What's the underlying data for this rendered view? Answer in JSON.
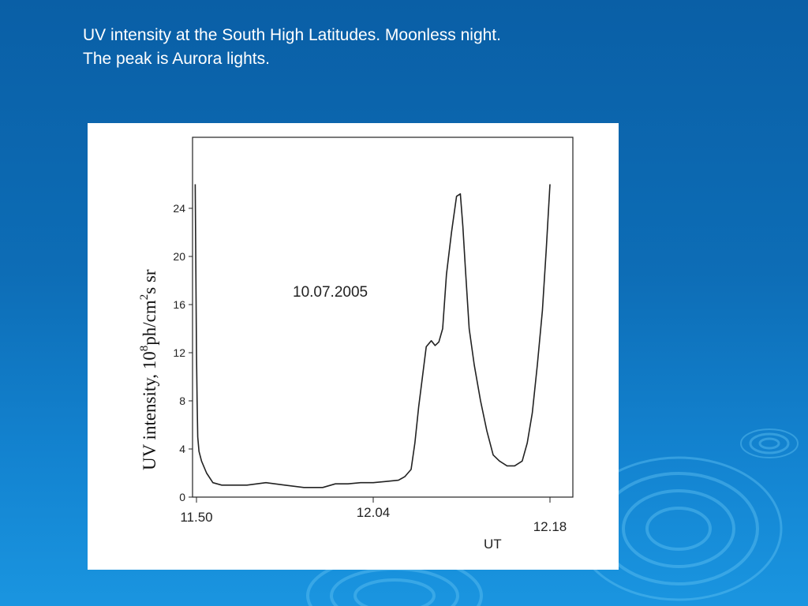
{
  "slide": {
    "title_line1": "UV intensity at the South High Latitudes. Moonless night.",
    "title_line2": "The peak is Aurora lights."
  },
  "colors": {
    "background_top": "#0a5fa6",
    "background_bottom": "#1a95e0",
    "chart_line": "#222222"
  },
  "chart_data": {
    "type": "line",
    "title": "",
    "annotation": "10.07.2005",
    "xlabel": "UT",
    "ylabel": {
      "prefix": "UV intensity, 10",
      "exp": "8",
      "unit": "ph/cm",
      "unit_sup": "2",
      "suffix": "s sr"
    },
    "xlim": [
      0,
      28
    ],
    "ylim": [
      0,
      28
    ],
    "x_ticks": [
      {
        "x": 0,
        "label": "11.50"
      },
      {
        "x": 14,
        "label": "12.04"
      },
      {
        "x": 28,
        "label": "12.18"
      }
    ],
    "y_ticks": [
      0,
      4,
      8,
      12,
      16,
      20,
      24
    ],
    "grid": false,
    "series": [
      {
        "x": [
          -0.1,
          0.0,
          0.05,
          0.1,
          0.2,
          0.4,
          0.8,
          1.3,
          2.0,
          3.0,
          4.0,
          5.5,
          7.0,
          8.5,
          10.0,
          11.0,
          12.0,
          13.0,
          14.0,
          15.0,
          16.0,
          16.5,
          17.0,
          17.3,
          17.6,
          17.9,
          18.2,
          18.6,
          18.9,
          19.2,
          19.5,
          19.8,
          20.2,
          20.6,
          20.9,
          21.1,
          21.3,
          21.6,
          22.0,
          22.5,
          23.0,
          23.5,
          24.0,
          24.6,
          25.2,
          25.8,
          26.2,
          26.6,
          27.0,
          27.4,
          27.7,
          28.0
        ],
        "y": [
          26.0,
          12.0,
          8.0,
          5.0,
          3.8,
          3.0,
          2.0,
          1.2,
          1.0,
          1.0,
          1.0,
          1.2,
          1.0,
          0.8,
          0.8,
          1.1,
          1.1,
          1.2,
          1.2,
          1.3,
          1.4,
          1.7,
          2.3,
          4.5,
          7.5,
          10.0,
          12.5,
          13.0,
          12.6,
          12.9,
          14.0,
          18.5,
          22.0,
          25.0,
          25.2,
          22.5,
          19.0,
          14.0,
          11.0,
          8.0,
          5.5,
          3.5,
          3.0,
          2.6,
          2.6,
          3.0,
          4.5,
          7.0,
          11.0,
          15.5,
          20.5,
          26.0
        ]
      }
    ]
  }
}
